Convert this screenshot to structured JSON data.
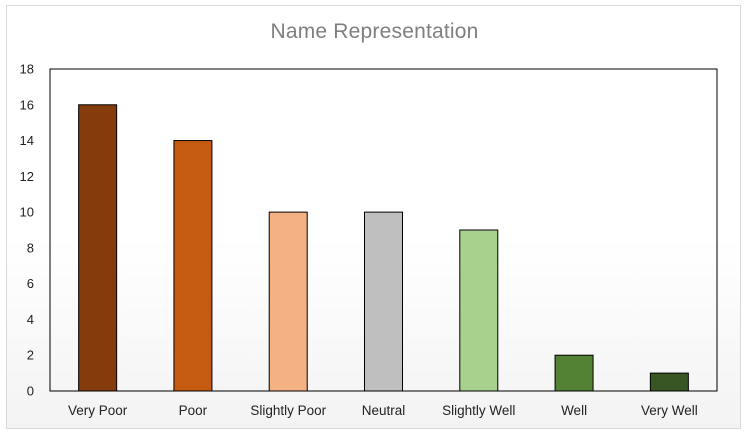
{
  "chart_data": {
    "type": "bar",
    "title": "Name Representation",
    "xlabel": "",
    "ylabel": "",
    "categories": [
      "Very Poor",
      "Poor",
      "Slightly Poor",
      "Neutral",
      "Slightly Well",
      "Well",
      "Very Well"
    ],
    "values": [
      16,
      14,
      10,
      10,
      9,
      2,
      1
    ],
    "colors": [
      "#843c0c",
      "#c55a11",
      "#f4b183",
      "#bfbfbf",
      "#a9d18e",
      "#548235",
      "#375623"
    ],
    "ylim": [
      0,
      18
    ],
    "yticks": [
      0,
      2,
      4,
      6,
      8,
      10,
      12,
      14,
      16,
      18
    ],
    "grid": false,
    "legend": "none"
  }
}
